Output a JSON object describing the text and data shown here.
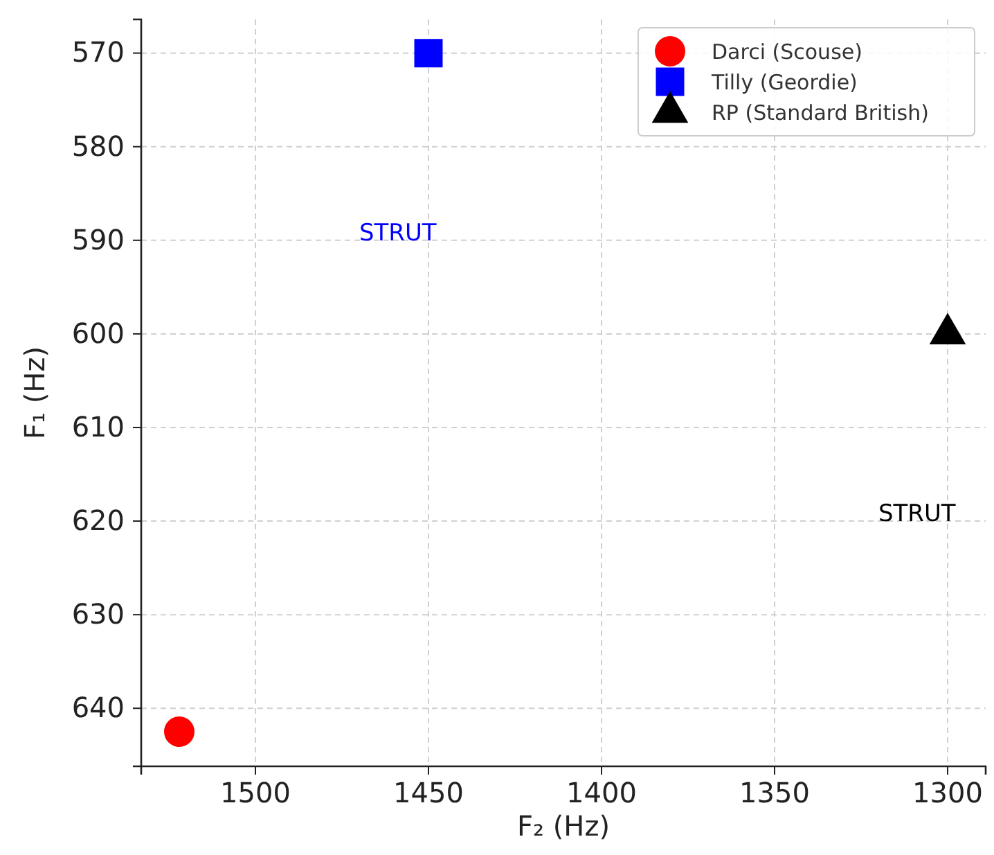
{
  "chart_data": {
    "type": "scatter",
    "xlabel": "F₂ (Hz)",
    "ylabel": "F₁ (Hz)",
    "xlim": [
      1533,
      1289
    ],
    "ylim": [
      646.2,
      566.4
    ],
    "xticks": [
      1500,
      1450,
      1400,
      1350,
      1300
    ],
    "yticks": [
      570,
      580,
      590,
      600,
      610,
      620,
      630,
      640
    ],
    "grid": true,
    "legend": "top right",
    "series": [
      {
        "name": "Darci (Scouse)",
        "color": "#ff0000",
        "marker": "circle",
        "x": [
          1522
        ],
        "values": [
          642.5
        ]
      },
      {
        "name": "Tilly (Geordie)",
        "color": "#0000ff",
        "marker": "square",
        "x": [
          1450
        ],
        "values": [
          570
        ]
      },
      {
        "name": "RP (Standard British)",
        "color": "#000000",
        "marker": "triangle",
        "x": [
          1300
        ],
        "values": [
          600
        ]
      }
    ],
    "annotations": [
      "STRUT",
      "STRUT"
    ]
  }
}
